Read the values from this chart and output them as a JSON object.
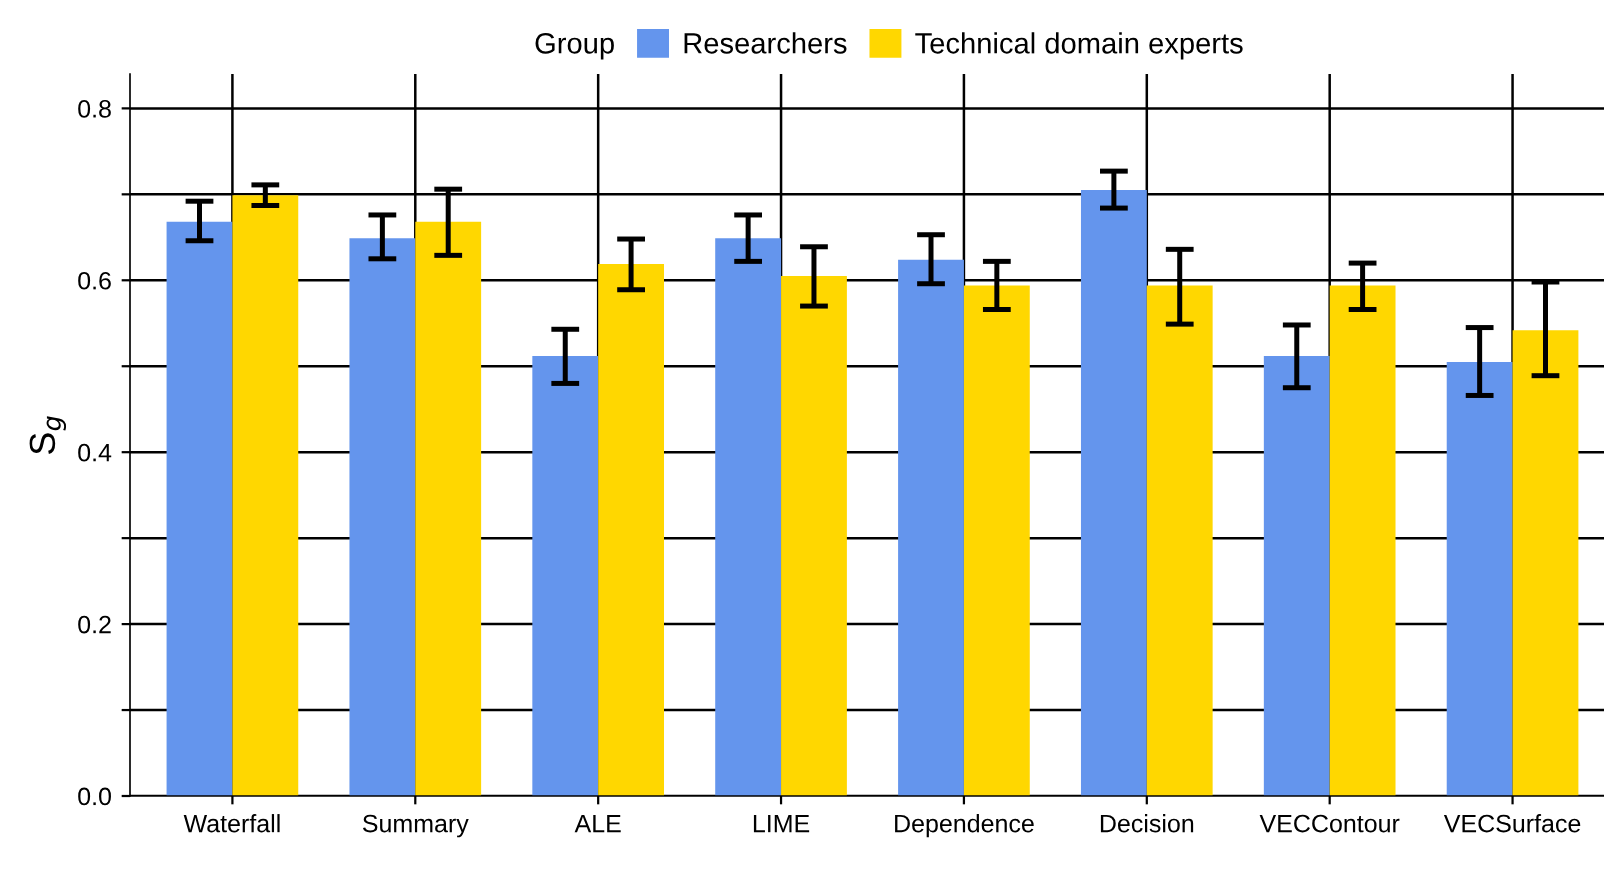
{
  "chart_data": {
    "type": "bar",
    "ylabel": "S$_{g}$",
    "legend_title": "Group",
    "legend": "top",
    "categories": [
      "Waterfall",
      "Summary",
      "ALE",
      "LIME",
      "Dependence",
      "Decision",
      "VECContour",
      "VECSurface"
    ],
    "series": [
      {
        "name": "Researchers",
        "color": "#6495ed",
        "values": [
          0.668,
          0.649,
          0.512,
          0.649,
          0.624,
          0.705,
          0.512,
          0.505
        ],
        "errors": [
          [
            0.646,
            0.692
          ],
          [
            0.625,
            0.676
          ],
          [
            0.48,
            0.543
          ],
          [
            0.622,
            0.676
          ],
          [
            0.596,
            0.653
          ],
          [
            0.684,
            0.727
          ],
          [
            0.475,
            0.548
          ],
          [
            0.466,
            0.545
          ]
        ]
      },
      {
        "name": "Technical domain experts",
        "color": "#ffd700",
        "values": [
          0.699,
          0.668,
          0.619,
          0.605,
          0.594,
          0.594,
          0.594,
          0.542
        ],
        "errors": [
          [
            0.687,
            0.711
          ],
          [
            0.629,
            0.706
          ],
          [
            0.589,
            0.648
          ],
          [
            0.57,
            0.639
          ],
          [
            0.566,
            0.622
          ],
          [
            0.549,
            0.636
          ],
          [
            0.566,
            0.62
          ],
          [
            0.489,
            0.598
          ]
        ]
      }
    ],
    "ylim": [
      0,
      0.84
    ],
    "yticks": [
      {
        "value": 0,
        "label": "0.0"
      },
      {
        "value": 0.1,
        "label": null
      },
      0.2,
      {
        "value": 0.3,
        "label": null
      },
      0.4,
      {
        "value": 0.5,
        "label": null
      },
      0.6,
      {
        "value": 0.7,
        "label": null
      },
      0.8
    ],
    "grid": true
  }
}
